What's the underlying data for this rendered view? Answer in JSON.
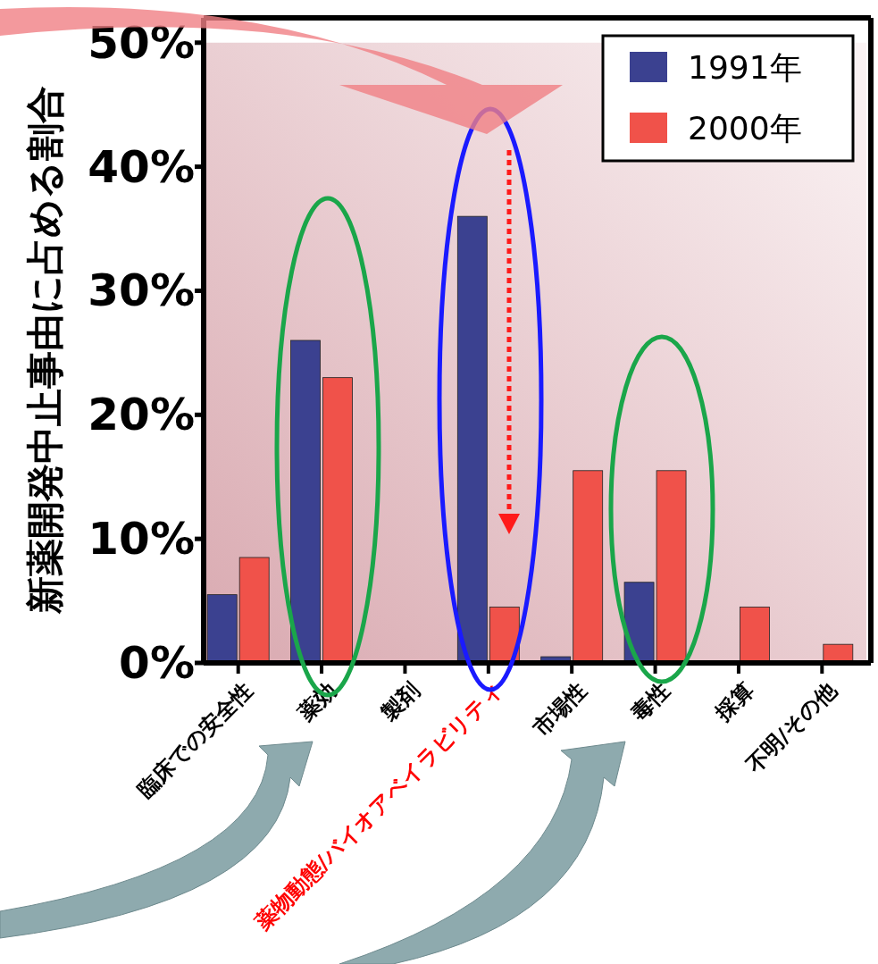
{
  "chart_data": {
    "type": "bar",
    "ylabel": "新薬開発中止事由に占める割合",
    "categories": [
      "臨床での安全性",
      "薬効",
      "製剤",
      "薬物動態/バイオアベイラビリティ",
      "市場性",
      "毒性",
      "採算",
      "不明/その他"
    ],
    "series": [
      {
        "name": "1991年",
        "color": "#3b4190",
        "values": [
          5.5,
          26,
          0,
          36,
          0.5,
          6.5,
          0,
          0
        ]
      },
      {
        "name": "2000年",
        "color": "#f0524a",
        "values": [
          8.5,
          23,
          0,
          4.5,
          15.5,
          15.5,
          4.5,
          1.5
        ]
      }
    ],
    "ylim": [
      0,
      52
    ],
    "yticks": [
      {
        "value": 0,
        "label": "0%"
      },
      {
        "value": 10,
        "label": "10%"
      },
      {
        "value": 20,
        "label": "20%"
      },
      {
        "value": 30,
        "label": "30%"
      },
      {
        "value": 40,
        "label": "40%"
      },
      {
        "value": 50,
        "label": "50%"
      }
    ],
    "legend": "top right",
    "grid": false
  }
}
